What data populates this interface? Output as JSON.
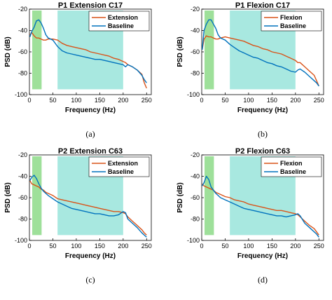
{
  "chart_data": [
    {
      "type": "line",
      "title": "P1 Extension C17",
      "caption": "(a)",
      "xlabel": "Frequency (Hz)",
      "ylabel": "PSD (dB)",
      "xlim": [
        0,
        260
      ],
      "ylim": [
        -100,
        -20
      ],
      "xticks": [
        0,
        50,
        100,
        150,
        200,
        250
      ],
      "yticks": [
        -20,
        -40,
        -60,
        -80,
        -100
      ],
      "legend_position": "top-right",
      "shaded_bands": [
        {
          "x0": 6,
          "x1": 26,
          "color": "#9ee09a"
        },
        {
          "x0": 60,
          "x1": 200,
          "color": "#a8e8e0"
        }
      ],
      "series": [
        {
          "name": "Extension",
          "color": "#d95319",
          "x": [
            1,
            5,
            10,
            15,
            20,
            25,
            30,
            35,
            40,
            50,
            60,
            70,
            80,
            90,
            100,
            110,
            120,
            130,
            140,
            150,
            160,
            170,
            180,
            190,
            200,
            205,
            210,
            220,
            230,
            240,
            245,
            250
          ],
          "y": [
            -44,
            -42,
            -45,
            -47,
            -47,
            -48,
            -49,
            -49,
            -48,
            -48,
            -49,
            -52,
            -54,
            -55,
            -56,
            -57,
            -58,
            -60,
            -61,
            -62,
            -63,
            -64,
            -66,
            -67,
            -69,
            -70,
            -72,
            -74,
            -77,
            -81,
            -89,
            -94
          ]
        },
        {
          "name": "Baseline",
          "color": "#0072bd",
          "x": [
            1,
            5,
            10,
            15,
            20,
            25,
            30,
            35,
            40,
            50,
            60,
            70,
            80,
            90,
            100,
            110,
            120,
            130,
            140,
            150,
            160,
            170,
            180,
            190,
            200,
            205,
            210,
            220,
            230,
            240,
            245,
            250
          ],
          "y": [
            -46,
            -41,
            -37,
            -31,
            -30,
            -33,
            -38,
            -44,
            -47,
            -49,
            -55,
            -59,
            -61,
            -62,
            -63,
            -64,
            -65,
            -66,
            -67,
            -67,
            -68,
            -69,
            -70,
            -71,
            -72,
            -74,
            -72,
            -74,
            -77,
            -82,
            -86,
            -89
          ]
        }
      ]
    },
    {
      "type": "line",
      "title": "P1 Flexion C17",
      "caption": "(b)",
      "xlabel": "Frequency (Hz)",
      "ylabel": "PSD (dB)",
      "xlim": [
        0,
        260
      ],
      "ylim": [
        -100,
        -20
      ],
      "xticks": [
        0,
        50,
        100,
        150,
        200,
        250
      ],
      "yticks": [
        -20,
        -40,
        -60,
        -80,
        -100
      ],
      "legend_position": "top-right",
      "shaded_bands": [
        {
          "x0": 6,
          "x1": 26,
          "color": "#9ee09a"
        },
        {
          "x0": 60,
          "x1": 200,
          "color": "#a8e8e0"
        }
      ],
      "series": [
        {
          "name": "Flexion",
          "color": "#d95319",
          "x": [
            1,
            5,
            10,
            15,
            20,
            25,
            30,
            35,
            40,
            50,
            60,
            70,
            80,
            90,
            100,
            110,
            120,
            130,
            140,
            150,
            160,
            170,
            180,
            190,
            200,
            205,
            210,
            220,
            230,
            240,
            245,
            250
          ],
          "y": [
            -58,
            -48,
            -45,
            -46,
            -46,
            -47,
            -48,
            -48,
            -47,
            -46,
            -47,
            -48,
            -49,
            -50,
            -52,
            -54,
            -55,
            -57,
            -58,
            -60,
            -61,
            -62,
            -64,
            -66,
            -68,
            -70,
            -70,
            -74,
            -78,
            -82,
            -87,
            -92
          ]
        },
        {
          "name": "Baseline",
          "color": "#0072bd",
          "x": [
            1,
            5,
            10,
            15,
            20,
            25,
            30,
            35,
            40,
            50,
            60,
            70,
            80,
            90,
            100,
            110,
            120,
            130,
            140,
            150,
            160,
            170,
            180,
            190,
            200,
            205,
            210,
            220,
            230,
            240,
            245,
            250
          ],
          "y": [
            -58,
            -40,
            -34,
            -30,
            -30,
            -34,
            -38,
            -44,
            -47,
            -49,
            -53,
            -56,
            -59,
            -61,
            -63,
            -65,
            -66,
            -68,
            -70,
            -71,
            -73,
            -74,
            -76,
            -78,
            -79,
            -77,
            -76,
            -79,
            -83,
            -87,
            -89,
            -92
          ]
        }
      ]
    },
    {
      "type": "line",
      "title": "P2 Extension C63",
      "caption": "(c)",
      "xlabel": "Frequency (Hz)",
      "ylabel": "PSD (dB)",
      "xlim": [
        0,
        260
      ],
      "ylim": [
        -100,
        -20
      ],
      "xticks": [
        0,
        50,
        100,
        150,
        200,
        250
      ],
      "yticks": [
        -20,
        -40,
        -60,
        -80,
        -100
      ],
      "legend_position": "top-right",
      "shaded_bands": [
        {
          "x0": 6,
          "x1": 26,
          "color": "#9ee09a"
        },
        {
          "x0": 60,
          "x1": 200,
          "color": "#a8e8e0"
        }
      ],
      "series": [
        {
          "name": "Extension",
          "color": "#d95319",
          "x": [
            1,
            5,
            10,
            15,
            20,
            25,
            30,
            35,
            40,
            50,
            60,
            70,
            80,
            90,
            100,
            110,
            120,
            130,
            140,
            150,
            160,
            170,
            180,
            190,
            200,
            205,
            210,
            220,
            230,
            240,
            245,
            250
          ],
          "y": [
            -44,
            -47,
            -48,
            -49,
            -50,
            -52,
            -53,
            -55,
            -56,
            -58,
            -61,
            -62,
            -63,
            -64,
            -65,
            -66,
            -67,
            -68,
            -69,
            -70,
            -71,
            -72,
            -73,
            -73,
            -74,
            -75,
            -78,
            -82,
            -86,
            -90,
            -93,
            -95
          ]
        },
        {
          "name": "Baseline",
          "color": "#0072bd",
          "x": [
            1,
            5,
            10,
            15,
            20,
            25,
            30,
            35,
            40,
            50,
            60,
            70,
            80,
            90,
            100,
            110,
            120,
            130,
            140,
            150,
            160,
            170,
            180,
            190,
            200,
            205,
            210,
            220,
            230,
            240,
            245,
            250
          ],
          "y": [
            -44,
            -41,
            -39,
            -42,
            -47,
            -51,
            -54,
            -56,
            -58,
            -61,
            -64,
            -66,
            -68,
            -70,
            -71,
            -72,
            -73,
            -74,
            -75,
            -75,
            -76,
            -77,
            -77,
            -76,
            -73,
            -74,
            -80,
            -84,
            -88,
            -93,
            -95,
            -97
          ]
        }
      ]
    },
    {
      "type": "line",
      "title": "P2 Flexion C63",
      "caption": "(d)",
      "xlabel": "Frequency (Hz)",
      "ylabel": "PSD (dB)",
      "xlim": [
        0,
        260
      ],
      "ylim": [
        -100,
        -20
      ],
      "xticks": [
        0,
        50,
        100,
        150,
        200,
        250
      ],
      "yticks": [
        -20,
        -40,
        -60,
        -80,
        -100
      ],
      "legend_position": "top-right",
      "shaded_bands": [
        {
          "x0": 6,
          "x1": 26,
          "color": "#9ee09a"
        },
        {
          "x0": 60,
          "x1": 200,
          "color": "#a8e8e0"
        }
      ],
      "series": [
        {
          "name": "Flexion",
          "color": "#d95319",
          "x": [
            1,
            5,
            10,
            15,
            20,
            25,
            30,
            35,
            40,
            50,
            60,
            70,
            80,
            90,
            100,
            110,
            120,
            130,
            140,
            150,
            160,
            170,
            180,
            190,
            200,
            205,
            210,
            220,
            230,
            240,
            245,
            250
          ],
          "y": [
            -47,
            -49,
            -50,
            -51,
            -52,
            -53,
            -55,
            -56,
            -57,
            -59,
            -60,
            -62,
            -63,
            -64,
            -66,
            -67,
            -68,
            -69,
            -70,
            -71,
            -72,
            -72,
            -73,
            -74,
            -75,
            -76,
            -78,
            -82,
            -86,
            -89,
            -92,
            -95
          ]
        },
        {
          "name": "Baseline",
          "color": "#0072bd",
          "x": [
            1,
            5,
            10,
            15,
            20,
            25,
            30,
            35,
            40,
            50,
            60,
            70,
            80,
            90,
            100,
            110,
            120,
            130,
            140,
            150,
            160,
            170,
            180,
            190,
            200,
            205,
            210,
            220,
            230,
            240,
            245,
            250
          ],
          "y": [
            -49,
            -46,
            -40,
            -43,
            -50,
            -53,
            -56,
            -58,
            -60,
            -62,
            -64,
            -66,
            -68,
            -70,
            -71,
            -72,
            -73,
            -74,
            -75,
            -76,
            -77,
            -77,
            -78,
            -77,
            -76,
            -75,
            -77,
            -84,
            -88,
            -92,
            -94,
            -97
          ]
        }
      ]
    }
  ]
}
